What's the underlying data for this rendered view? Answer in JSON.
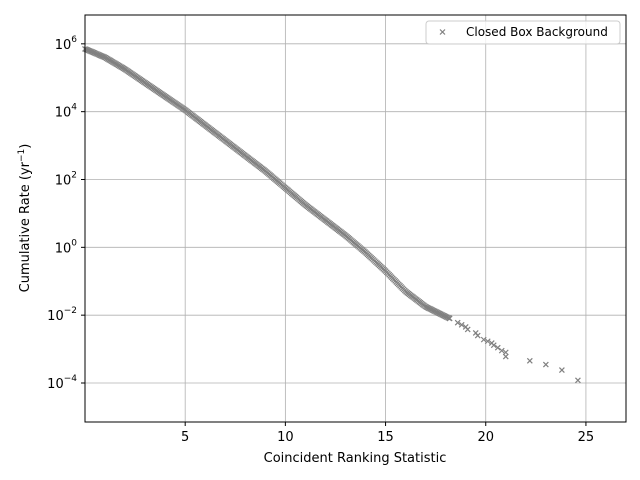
{
  "chart_data": {
    "type": "scatter",
    "title": "",
    "xlabel": "Coincident Ranking Statistic",
    "ylabel_main": "Cumulative Rate (yr",
    "ylabel_sup": "−1",
    "ylabel_close": ")",
    "xlim": [
      0.0,
      27.0
    ],
    "ylim_log10": [
      -5.15,
      6.85
    ],
    "yscale": "log",
    "grid": true,
    "legend_position": "top-right",
    "x_ticks": [
      {
        "value": 5,
        "label": "5"
      },
      {
        "value": 10,
        "label": "10"
      },
      {
        "value": 15,
        "label": "15"
      },
      {
        "value": 20,
        "label": "20"
      },
      {
        "value": 25,
        "label": "25"
      }
    ],
    "y_ticks": [
      {
        "exp": -4,
        "base": "10",
        "sup": "−4"
      },
      {
        "exp": -2,
        "base": "10",
        "sup": "−2"
      },
      {
        "exp": 0,
        "base": "10",
        "sup": "0"
      },
      {
        "exp": 2,
        "base": "10",
        "sup": "2"
      },
      {
        "exp": 4,
        "base": "10",
        "sup": "4"
      },
      {
        "exp": 6,
        "base": "10",
        "sup": "6"
      }
    ],
    "series": [
      {
        "name": "Closed Box Background",
        "marker": "x",
        "color": "#808080",
        "curve_x": [
          0.0,
          1.0,
          2.0,
          3.0,
          4.0,
          5.0,
          6.0,
          7.0,
          8.0,
          9.0,
          10.0,
          11.0,
          12.0,
          13.0,
          14.0,
          15.0,
          16.0,
          17.0,
          18.2
        ],
        "curve_log10_y": [
          5.85,
          5.6,
          5.25,
          4.85,
          4.45,
          4.05,
          3.6,
          3.15,
          2.7,
          2.25,
          1.75,
          1.25,
          0.8,
          0.35,
          -0.15,
          -0.7,
          -1.3,
          -1.75,
          -2.1
        ],
        "sparse_points": [
          {
            "x": 18.2,
            "y": 0.008
          },
          {
            "x": 18.6,
            "y": 0.006
          },
          {
            "x": 18.8,
            "y": 0.0052
          },
          {
            "x": 19.0,
            "y": 0.0045
          },
          {
            "x": 19.1,
            "y": 0.0038
          },
          {
            "x": 19.5,
            "y": 0.003
          },
          {
            "x": 19.6,
            "y": 0.0025
          },
          {
            "x": 19.9,
            "y": 0.0019
          },
          {
            "x": 20.1,
            "y": 0.0017
          },
          {
            "x": 20.3,
            "y": 0.0015
          },
          {
            "x": 20.4,
            "y": 0.0013
          },
          {
            "x": 20.6,
            "y": 0.0011
          },
          {
            "x": 20.8,
            "y": 0.0009
          },
          {
            "x": 21.0,
            "y": 0.0008
          },
          {
            "x": 21.0,
            "y": 0.0006
          },
          {
            "x": 22.2,
            "y": 0.00045
          },
          {
            "x": 23.0,
            "y": 0.00035
          },
          {
            "x": 23.8,
            "y": 0.00024
          },
          {
            "x": 24.6,
            "y": 0.00012
          }
        ]
      }
    ]
  }
}
